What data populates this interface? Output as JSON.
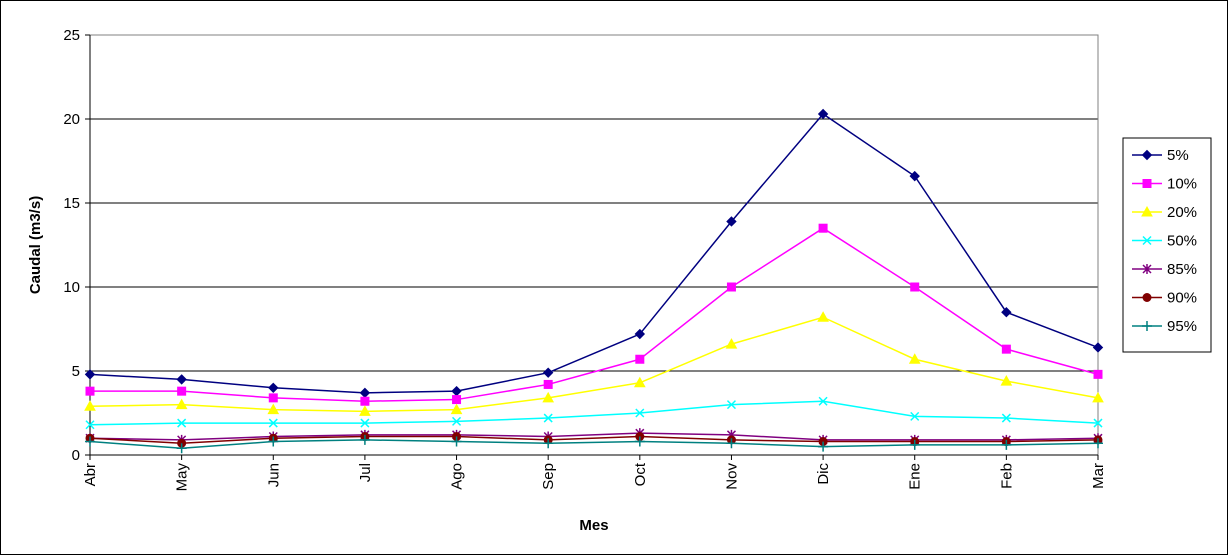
{
  "chart_data": {
    "type": "line",
    "title": "",
    "xlabel": "Mes",
    "ylabel": "Caudal (m3/s)",
    "categories": [
      "Abr",
      "May",
      "Jun",
      "Jul",
      "Ago",
      "Sep",
      "Oct",
      "Nov",
      "Dic",
      "Ene",
      "Feb",
      "Mar"
    ],
    "ylim": [
      0,
      25
    ],
    "yticks": [
      0,
      5,
      10,
      15,
      20,
      25
    ],
    "grid": true,
    "legend_position": "right",
    "series": [
      {
        "name": "5%",
        "color": "#000080",
        "marker": "diamond",
        "values": [
          4.8,
          4.5,
          4.0,
          3.7,
          3.8,
          4.9,
          7.2,
          13.9,
          20.3,
          16.6,
          8.5,
          6.4
        ]
      },
      {
        "name": "10%",
        "color": "#FF00FF",
        "marker": "square",
        "values": [
          3.8,
          3.8,
          3.4,
          3.2,
          3.3,
          4.2,
          5.7,
          10.0,
          13.5,
          10.0,
          6.3,
          4.8
        ]
      },
      {
        "name": "20%",
        "color": "#FFFF00",
        "marker": "triangle",
        "values": [
          2.9,
          3.0,
          2.7,
          2.6,
          2.7,
          3.4,
          4.3,
          6.6,
          8.2,
          5.7,
          4.4,
          3.4
        ]
      },
      {
        "name": "50%",
        "color": "#00FFFF",
        "marker": "x",
        "values": [
          1.8,
          1.9,
          1.9,
          1.9,
          2.0,
          2.2,
          2.5,
          3.0,
          3.2,
          2.3,
          2.2,
          1.9
        ]
      },
      {
        "name": "85%",
        "color": "#800080",
        "marker": "star",
        "values": [
          1.0,
          0.9,
          1.1,
          1.2,
          1.2,
          1.1,
          1.3,
          1.2,
          0.9,
          0.9,
          0.9,
          1.0
        ]
      },
      {
        "name": "90%",
        "color": "#800000",
        "marker": "circle",
        "values": [
          1.0,
          0.7,
          1.0,
          1.1,
          1.1,
          0.9,
          1.1,
          0.9,
          0.8,
          0.8,
          0.8,
          0.9
        ]
      },
      {
        "name": "95%",
        "color": "#008080",
        "marker": "plus",
        "values": [
          0.8,
          0.4,
          0.8,
          0.9,
          0.8,
          0.7,
          0.8,
          0.7,
          0.5,
          0.6,
          0.6,
          0.7
        ]
      }
    ]
  }
}
